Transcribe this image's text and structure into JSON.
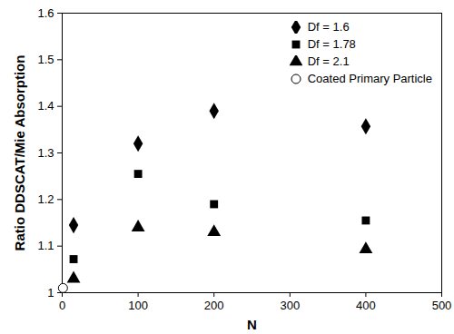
{
  "chart_data": {
    "type": "scatter",
    "xlabel": "N",
    "ylabel": "Ratio DDSCAT/Mie Absorption",
    "xlim": [
      0,
      500
    ],
    "xticks": [
      0,
      100,
      200,
      300,
      400,
      500
    ],
    "ylim": [
      1,
      1.6
    ],
    "yticks": [
      1,
      1.1,
      1.2,
      1.3,
      1.4,
      1.5,
      1.6
    ],
    "grid": false,
    "legend": "upper right",
    "series": [
      {
        "name": "Df = 1.6",
        "color": "#000000",
        "marker": "diamond",
        "x": [
          15,
          100,
          200,
          400
        ],
        "values": [
          1.145,
          1.32,
          1.39,
          1.357
        ]
      },
      {
        "name": "Df = 1.78",
        "color": "#000000",
        "marker": "square",
        "x": [
          15,
          100,
          200,
          400
        ],
        "values": [
          1.072,
          1.255,
          1.19,
          1.155
        ]
      },
      {
        "name": "Df = 2.1",
        "color": "#000000",
        "marker": "triangle",
        "x": [
          15,
          100,
          200,
          400
        ],
        "values": [
          1.03,
          1.14,
          1.13,
          1.093
        ]
      },
      {
        "name": "Coated Primary Particle",
        "color": "#000000",
        "marker": "open circle",
        "x": [
          1
        ],
        "values": [
          1.01
        ]
      }
    ]
  }
}
